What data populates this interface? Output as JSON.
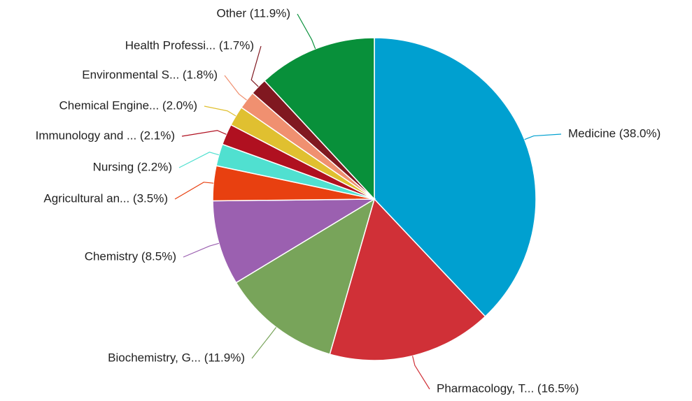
{
  "chart_data": {
    "type": "pie",
    "categories": [
      "Medicine (38.0%)",
      "Pharmacology, T... (16.5%)",
      "Biochemistry, G... (11.9%)",
      "Chemistry (8.5%)",
      "Agricultural an... (3.5%)",
      "Nursing (2.2%)",
      "Immunology and ... (2.1%)",
      "Chemical Engine... (2.0%)",
      "Environmental S... (1.8%)",
      "Health Professi... (1.7%)",
      "Other (11.9%)"
    ],
    "values": [
      38.0,
      16.5,
      11.9,
      8.5,
      3.5,
      2.2,
      2.1,
      2.0,
      1.8,
      1.7,
      11.9
    ],
    "colors": [
      "#00a0d0",
      "#d03037",
      "#78a45a",
      "#9b60b0",
      "#e84010",
      "#50e0d0",
      "#b01020",
      "#e0c030",
      "#f09070",
      "#801820",
      "#08903a"
    ]
  }
}
